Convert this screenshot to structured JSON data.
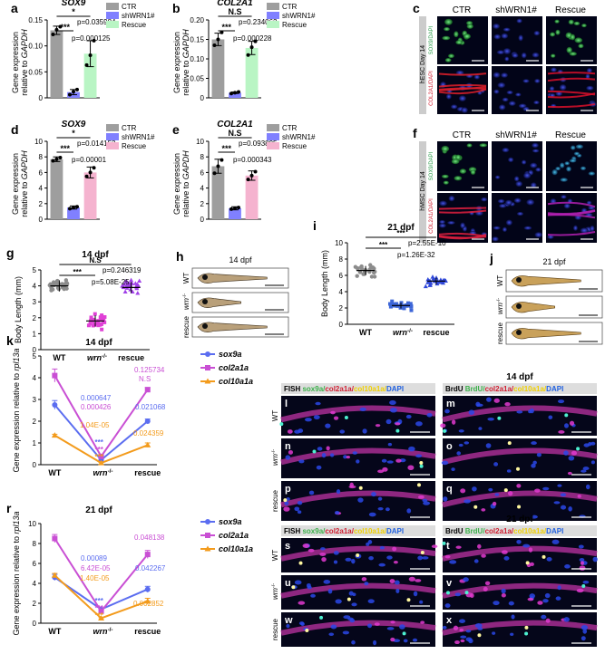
{
  "colors": {
    "ctr": "#9e9e9e",
    "shwrn": "#8080ff",
    "rescue_green": "#b9f5c4",
    "rescue_pink": "#f5b3cf",
    "wt_dot": "#8c8c8c",
    "wrn_dot": "#e040d6",
    "rescue_dot": "#a040e8",
    "rescue_dot_i": "#2f47d9",
    "sox9a": "#5b6df0",
    "col2a1a": "#c94fd4",
    "col10a1a": "#f39b1c"
  },
  "chart_data": [
    {
      "panel": "a",
      "type": "bar",
      "title": "SOX9",
      "ylabel": "Gene expression relative to GAPDH",
      "ylim": [
        0,
        0.15
      ],
      "yticks": [
        "0",
        "0.05",
        "0.10",
        "0.15"
      ],
      "categories": [
        "CTR",
        "shWRN1#",
        "Rescue"
      ],
      "values": [
        0.13,
        0.011,
        0.085
      ],
      "errors": [
        0.008,
        0.005,
        0.025
      ],
      "points": [
        [
          0.122,
          0.131,
          0.137
        ],
        [
          0.006,
          0.012,
          0.016
        ],
        [
          0.063,
          0.082,
          0.11
        ]
      ],
      "sig": [
        {
          "from": 0,
          "to": 2,
          "mark": "*",
          "p": "p=0.035984"
        },
        {
          "from": 0,
          "to": 1,
          "mark": "***",
          "p": "p=0.000125"
        }
      ],
      "legend": [
        "CTR",
        "shWRN1#",
        "Rescue"
      ]
    },
    {
      "panel": "b",
      "type": "bar",
      "title": "COL2A1",
      "ylabel": "Gene expression relative to GAPDH",
      "ylim": [
        0,
        0.2
      ],
      "yticks": [
        "0",
        "0.05",
        "0.10",
        "0.15",
        "0.20"
      ],
      "categories": [
        "CTR",
        "shWRN1#",
        "Rescue"
      ],
      "values": [
        0.15,
        0.013,
        0.128
      ],
      "errors": [
        0.016,
        0.002,
        0.017
      ],
      "points": [
        [
          0.135,
          0.15,
          0.168
        ],
        [
          0.011,
          0.013,
          0.015
        ],
        [
          0.11,
          0.13,
          0.145
        ]
      ],
      "sig": [
        {
          "from": 0,
          "to": 2,
          "mark": "N.S",
          "p": "p=0.234062"
        },
        {
          "from": 0,
          "to": 1,
          "mark": "***",
          "p": "p=0.000228"
        }
      ],
      "legend": [
        "CTR",
        "shWRN1#",
        "Rescue"
      ]
    },
    {
      "panel": "d",
      "type": "bar",
      "title": "SOX9",
      "ylabel": "Gene expression relative to GAPDH",
      "ylim": [
        0,
        10
      ],
      "yticks": [
        "0",
        "2",
        "4",
        "6",
        "8",
        "10"
      ],
      "categories": [
        "CTR",
        "shWRN1#",
        "Rescue"
      ],
      "values": [
        7.7,
        1.5,
        6.0
      ],
      "errors": [
        0.3,
        0.2,
        0.7
      ],
      "points": [
        [
          7.5,
          7.7,
          7.9
        ],
        [
          1.35,
          1.5,
          1.6
        ],
        [
          5.5,
          6.0,
          6.6
        ]
      ],
      "sig": [
        {
          "from": 0,
          "to": 2,
          "mark": "*",
          "p": "p=0.014153"
        },
        {
          "from": 0,
          "to": 1,
          "mark": "***",
          "p": "p=0.00001"
        }
      ],
      "legend": [
        "CTR",
        "shWRN1#",
        "Rescue"
      ]
    },
    {
      "panel": "e",
      "type": "bar",
      "title": "COL2A1",
      "ylabel": "Gene expression relative to GAPDH",
      "ylim": [
        0,
        10
      ],
      "yticks": [
        "0",
        "2",
        "4",
        "6",
        "8",
        "10"
      ],
      "categories": [
        "CTR",
        "shWRN1#",
        "Rescue"
      ],
      "values": [
        6.8,
        1.4,
        5.6
      ],
      "errors": [
        0.9,
        0.2,
        0.6
      ],
      "points": [
        [
          5.9,
          6.8,
          7.6
        ],
        [
          1.3,
          1.4,
          1.5
        ],
        [
          5.1,
          5.6,
          6.1
        ]
      ],
      "sig": [
        {
          "from": 0,
          "to": 2,
          "mark": "N.S",
          "p": "p=0.093895"
        },
        {
          "from": 0,
          "to": 1,
          "mark": "***",
          "p": "p=0.000343"
        }
      ],
      "legend": [
        "CTR",
        "shWRN1#",
        "Rescue"
      ]
    },
    {
      "panel": "g",
      "type": "scatter",
      "title": "14 dpf",
      "ylabel": "Body Length (mm)",
      "ylim": [
        0,
        5
      ],
      "yticks": [
        "0",
        "1",
        "2",
        "3",
        "4",
        "5"
      ],
      "categories": [
        "WT",
        "wrn",
        "rescue"
      ],
      "means": [
        4.0,
        1.8,
        3.9
      ],
      "sd": [
        0.35,
        0.35,
        0.35
      ],
      "sig": [
        {
          "from": 0,
          "to": 2,
          "mark": "N.S",
          "p": "p=0.246319"
        },
        {
          "from": 0,
          "to": 1,
          "mark": "***",
          "p": "p=5.08E-25"
        }
      ]
    },
    {
      "panel": "i",
      "type": "scatter",
      "title": "21 dpf",
      "ylabel": "Body Length (mm)",
      "ylim": [
        0,
        10
      ],
      "yticks": [
        "0",
        "2",
        "4",
        "6",
        "8",
        "10"
      ],
      "categories": [
        "WT",
        "wrn",
        "rescue"
      ],
      "means": [
        6.6,
        2.3,
        5.3
      ],
      "sd": [
        0.55,
        0.35,
        0.4
      ],
      "sig": [
        {
          "from": 0,
          "to": 2,
          "mark": "***",
          "p": "p=2.55E-10"
        },
        {
          "from": 0,
          "to": 1,
          "mark": "***",
          "p": "p=1.26E-32"
        }
      ]
    },
    {
      "panel": "k",
      "type": "line",
      "title": "14 dpf",
      "ylabel": "Gene expression relative to rpl13a",
      "ylim": [
        0,
        5
      ],
      "yticks": [
        "0",
        "1",
        "2",
        "3",
        "4",
        "5"
      ],
      "categories": [
        "WT",
        "wrn",
        "rescue"
      ],
      "series": [
        {
          "name": "sox9a",
          "values": [
            2.75,
            0.22,
            2.0
          ],
          "errors": [
            0.2,
            0.05,
            0.1
          ]
        },
        {
          "name": "col2a1a",
          "values": [
            4.1,
            0.38,
            3.45
          ],
          "errors": [
            0.3,
            0.05,
            0.1
          ]
        },
        {
          "name": "col10a1a",
          "values": [
            1.35,
            0.08,
            0.9
          ],
          "errors": [
            0.05,
            0.03,
            0.1
          ]
        }
      ],
      "annotations": [
        {
          "text": "0.125734",
          "color": "col2a1a"
        },
        {
          "text": "N.S",
          "color": "col2a1a"
        },
        {
          "text": "0.000647",
          "color": "sox9a"
        },
        {
          "text": "0.000426",
          "color": "col2a1a"
        },
        {
          "text": "0.021068",
          "color": "sox9a"
        },
        {
          "text": "1.04E-05",
          "color": "col10a1a"
        },
        {
          "text": "0.024359",
          "color": "col10a1a"
        }
      ]
    },
    {
      "panel": "r",
      "type": "line",
      "title": "21 dpf",
      "ylabel": "Gene expression relative to rpl13a",
      "ylim": [
        0,
        10
      ],
      "yticks": [
        "0",
        "2",
        "4",
        "6",
        "8",
        "10"
      ],
      "categories": [
        "WT",
        "wrn",
        "rescue"
      ],
      "series": [
        {
          "name": "sox9a",
          "values": [
            4.6,
            1.4,
            3.4
          ],
          "errors": [
            0.3,
            0.1,
            0.3
          ]
        },
        {
          "name": "col2a1a",
          "values": [
            8.5,
            1.2,
            6.9
          ],
          "errors": [
            0.4,
            0.1,
            0.4
          ]
        },
        {
          "name": "col10a1a",
          "values": [
            4.8,
            0.5,
            2.2
          ],
          "errors": [
            0.2,
            0.05,
            0.3
          ]
        }
      ],
      "annotations": [
        {
          "text": "0.048138",
          "color": "col2a1a"
        },
        {
          "text": "0.00089",
          "color": "sox9a"
        },
        {
          "text": "6.42E-05",
          "color": "col2a1a"
        },
        {
          "text": "0.042267",
          "color": "sox9a"
        },
        {
          "text": "1.40E-05",
          "color": "col10a1a"
        },
        {
          "text": "0.002852",
          "color": "col10a1a"
        }
      ]
    }
  ],
  "panel_c": {
    "label": "c",
    "cols": [
      "CTR",
      "shWRN1#",
      "Rescue"
    ],
    "side": "hESC Day 14",
    "row1": "SOX9/DAPI",
    "row2": "COL2A1/DAPI"
  },
  "panel_f": {
    "label": "f",
    "cols": [
      "CTR",
      "shWRN1#",
      "Rescue"
    ],
    "side": "hMSC Day 14",
    "row1": "SOX9/DAPI",
    "row2": "COL2A1/DAPI"
  },
  "panel_h": {
    "label": "h",
    "title": "14 dpf",
    "rows": [
      "WT",
      "wrn",
      "rescue"
    ]
  },
  "panel_j": {
    "label": "j",
    "title": "21 dpf",
    "rows": [
      "WT",
      "wrn",
      "rescue"
    ]
  },
  "panel_14": {
    "title": "14 dpf",
    "fish_header": "FISH",
    "fish_parts": [
      "sox9a",
      "col2a1a",
      "col10a1a",
      "DAPI"
    ],
    "brdu_header": "BrdU",
    "brdu_parts": [
      "BrdU",
      "col2a1a",
      "col10a1a",
      "DAPI"
    ],
    "rows": [
      "WT",
      "wrn",
      "rescue"
    ],
    "letters": [
      "l",
      "m",
      "n",
      "o",
      "p",
      "q"
    ]
  },
  "panel_21": {
    "title": "21 dpf",
    "fish_header": "FISH",
    "fish_parts": [
      "sox9a",
      "col2a1a",
      "col10a1a",
      "DAPI"
    ],
    "brdu_header": "BrdU",
    "brdu_parts": [
      "BrdU",
      "col2a1a",
      "col10a1a",
      "DAPI"
    ],
    "rows": [
      "WT",
      "wrn",
      "rescue"
    ],
    "letters": [
      "s",
      "t",
      "u",
      "v",
      "w",
      "x"
    ]
  },
  "wrn_sup": "-/-"
}
